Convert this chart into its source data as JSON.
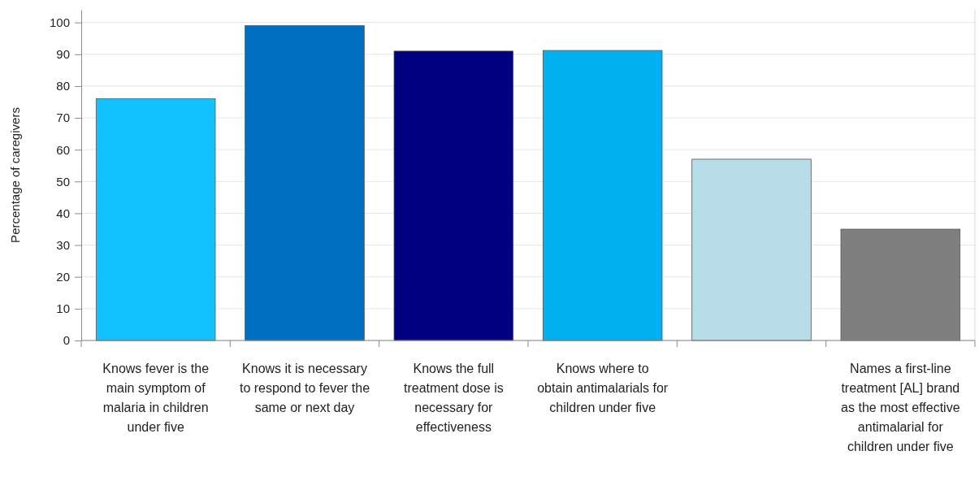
{
  "chart_data": {
    "type": "bar",
    "ylabel": "Percentage of caregivers",
    "categories": [
      "Knows fever is the main symptom of malaria in children under five",
      "Knows it is necessary to respond to fever the same or next day",
      "Knows the full treatment dose is necessary for effectiveness",
      "Knows where to obtain antimalarials for children under five",
      null,
      "Names a first-line treatment [AL] brand as the most effective antimalarial for children under five"
    ],
    "values": [
      76,
      99,
      91,
      91.2,
      57,
      35
    ],
    "colors": [
      "#13c1ff",
      "#0070c0",
      "#000080",
      "#00b0f0",
      "#b7dee8",
      "#7f7f7f"
    ],
    "ylim": [
      0,
      104
    ],
    "yticks": [
      0,
      10,
      20,
      30,
      40,
      50,
      60,
      70,
      80,
      90,
      100
    ],
    "grid": "y"
  }
}
